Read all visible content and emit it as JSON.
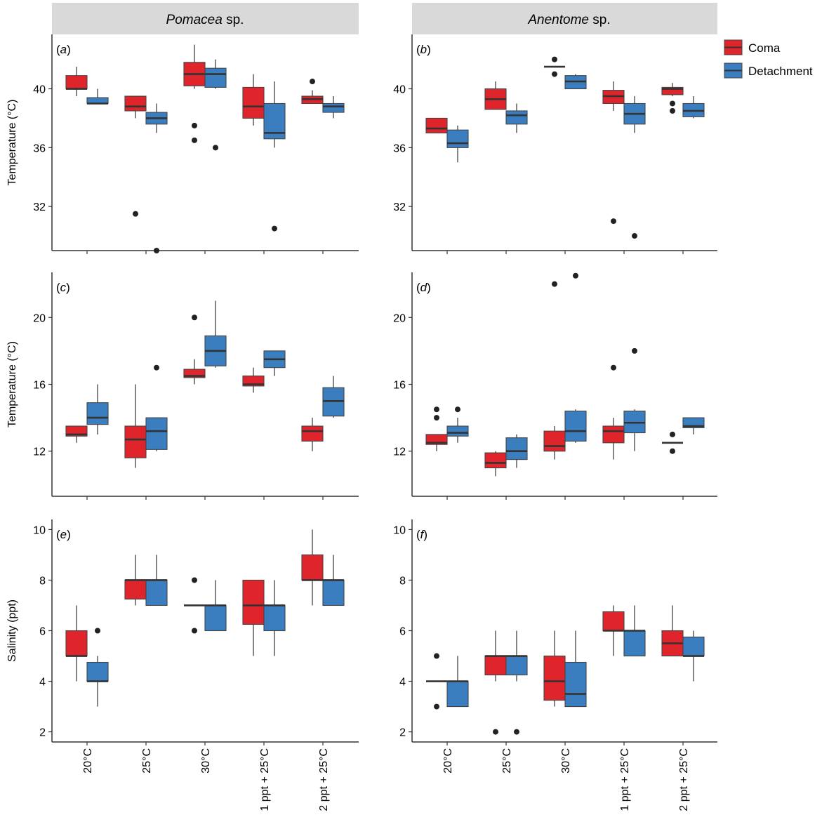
{
  "figure": {
    "columns": [
      {
        "italic": "Pomacea",
        "rest": " sp."
      },
      {
        "italic": "Anentome",
        "rest": " sp."
      }
    ],
    "legend": [
      {
        "label": "Coma",
        "color": "#e0242b"
      },
      {
        "label": "Detachment",
        "color": "#3a7ebf"
      }
    ],
    "x_categories": [
      "20°C",
      "25°C",
      "30°C",
      "1 ppt + 25°C",
      "2 ppt + 25°C"
    ]
  },
  "chart_data": [
    {
      "type": "box",
      "panel_label": "a",
      "ylabel": "Temperature (°C)",
      "ylim": [
        29,
        43.7
      ],
      "yticks": [
        32,
        36,
        40
      ],
      "categories": [
        "20°C",
        "25°C",
        "30°C",
        "1 ppt + 25°C",
        "2 ppt + 25°C"
      ],
      "series": [
        {
          "name": "Coma",
          "boxes": [
            {
              "lo": 39.5,
              "q1": 40.0,
              "med": 40.0,
              "q3": 40.9,
              "hi": 41.5,
              "out": []
            },
            {
              "lo": 38.0,
              "q1": 38.5,
              "med": 38.8,
              "q3": 39.5,
              "hi": 39.5,
              "out": [
                31.5
              ]
            },
            {
              "lo": 40.0,
              "q1": 40.2,
              "med": 41.0,
              "q3": 41.8,
              "hi": 43.0,
              "out": [
                37.5,
                36.5
              ]
            },
            {
              "lo": 37.5,
              "q1": 38.0,
              "med": 38.8,
              "q3": 40.1,
              "hi": 41.0,
              "out": []
            },
            {
              "lo": 39.0,
              "q1": 39.0,
              "med": 39.3,
              "q3": 39.5,
              "hi": 39.9,
              "out": [
                40.5
              ]
            }
          ]
        },
        {
          "name": "Detachment",
          "boxes": [
            {
              "lo": 39.0,
              "q1": 39.0,
              "med": 39.0,
              "q3": 39.4,
              "hi": 40.0,
              "out": []
            },
            {
              "lo": 37.0,
              "q1": 37.6,
              "med": 38.0,
              "q3": 38.4,
              "hi": 39.0,
              "out": [
                29.0
              ]
            },
            {
              "lo": 40.0,
              "q1": 40.1,
              "med": 41.0,
              "q3": 41.4,
              "hi": 42.0,
              "out": [
                36.0
              ]
            },
            {
              "lo": 36.0,
              "q1": 36.6,
              "med": 37.0,
              "q3": 39.0,
              "hi": 40.5,
              "out": [
                30.5
              ]
            },
            {
              "lo": 38.0,
              "q1": 38.4,
              "med": 38.8,
              "q3": 39.0,
              "hi": 39.5,
              "out": []
            }
          ]
        }
      ]
    },
    {
      "type": "box",
      "panel_label": "b",
      "ylabel": "",
      "ylim": [
        29,
        43.7
      ],
      "yticks": [
        32,
        36,
        40
      ],
      "categories": [
        "20°C",
        "25°C",
        "30°C",
        "1 ppt + 25°C",
        "2 ppt + 25°C"
      ],
      "series": [
        {
          "name": "Coma",
          "boxes": [
            {
              "lo": 37.0,
              "q1": 37.0,
              "med": 37.3,
              "q3": 38.0,
              "hi": 38.0,
              "out": []
            },
            {
              "lo": 38.6,
              "q1": 38.6,
              "med": 39.3,
              "q3": 40.0,
              "hi": 40.5,
              "out": []
            },
            {
              "lo": 41.5,
              "q1": 41.5,
              "med": 41.5,
              "q3": 41.5,
              "hi": 41.5,
              "out": [
                42.0,
                41.0
              ]
            },
            {
              "lo": 38.5,
              "q1": 39.0,
              "med": 39.5,
              "q3": 39.9,
              "hi": 40.5,
              "out": [
                31.0
              ]
            },
            {
              "lo": 39.5,
              "q1": 39.6,
              "med": 40.0,
              "q3": 40.1,
              "hi": 40.4,
              "out": [
                39.0,
                38.5
              ]
            }
          ]
        },
        {
          "name": "Detachment",
          "boxes": [
            {
              "lo": 35.0,
              "q1": 36.0,
              "med": 36.3,
              "q3": 37.2,
              "hi": 37.5,
              "out": []
            },
            {
              "lo": 37.0,
              "q1": 37.6,
              "med": 38.2,
              "q3": 38.5,
              "hi": 39.0,
              "out": []
            },
            {
              "lo": 40.0,
              "q1": 40.0,
              "med": 40.5,
              "q3": 40.9,
              "hi": 41.0,
              "out": []
            },
            {
              "lo": 37.0,
              "q1": 37.6,
              "med": 38.3,
              "q3": 39.0,
              "hi": 39.5,
              "out": [
                30.0
              ]
            },
            {
              "lo": 38.0,
              "q1": 38.1,
              "med": 38.5,
              "q3": 39.0,
              "hi": 39.5,
              "out": []
            }
          ]
        }
      ]
    },
    {
      "type": "box",
      "panel_label": "c",
      "ylabel": "Temperature (°C)",
      "ylim": [
        9.3,
        22.7
      ],
      "yticks": [
        12,
        16,
        20
      ],
      "categories": [
        "20°C",
        "25°C",
        "30°C",
        "1 ppt + 25°C",
        "2 ppt + 25°C"
      ],
      "series": [
        {
          "name": "Coma",
          "boxes": [
            {
              "lo": 12.5,
              "q1": 12.9,
              "med": 13.0,
              "q3": 13.5,
              "hi": 13.5,
              "out": []
            },
            {
              "lo": 11.0,
              "q1": 11.6,
              "med": 12.7,
              "q3": 13.5,
              "hi": 16.0,
              "out": []
            },
            {
              "lo": 16.0,
              "q1": 16.4,
              "med": 16.5,
              "q3": 16.9,
              "hi": 17.5,
              "out": [
                20.0
              ]
            },
            {
              "lo": 15.5,
              "q1": 15.9,
              "med": 16.0,
              "q3": 16.5,
              "hi": 17.0,
              "out": []
            },
            {
              "lo": 12.0,
              "q1": 12.6,
              "med": 13.2,
              "q3": 13.5,
              "hi": 14.0,
              "out": []
            }
          ]
        },
        {
          "name": "Detachment",
          "boxes": [
            {
              "lo": 13.0,
              "q1": 13.6,
              "med": 14.0,
              "q3": 14.9,
              "hi": 16.0,
              "out": []
            },
            {
              "lo": 12.0,
              "q1": 12.1,
              "med": 13.2,
              "q3": 14.0,
              "hi": 14.0,
              "out": [
                17.0
              ]
            },
            {
              "lo": 17.0,
              "q1": 17.1,
              "med": 18.0,
              "q3": 18.9,
              "hi": 21.0,
              "out": []
            },
            {
              "lo": 16.5,
              "q1": 17.0,
              "med": 17.5,
              "q3": 18.0,
              "hi": 18.0,
              "out": []
            },
            {
              "lo": 14.0,
              "q1": 14.1,
              "med": 15.0,
              "q3": 15.8,
              "hi": 16.5,
              "out": []
            }
          ]
        }
      ]
    },
    {
      "type": "box",
      "panel_label": "d",
      "ylabel": "",
      "ylim": [
        9.3,
        22.7
      ],
      "yticks": [
        12,
        16,
        20
      ],
      "categories": [
        "20°C",
        "25°C",
        "30°C",
        "1 ppt + 25°C",
        "2 ppt + 25°C"
      ],
      "series": [
        {
          "name": "Coma",
          "boxes": [
            {
              "lo": 12.0,
              "q1": 12.4,
              "med": 12.5,
              "q3": 13.0,
              "hi": 13.0,
              "out": [
                14.5,
                14.0
              ]
            },
            {
              "lo": 10.5,
              "q1": 11.0,
              "med": 11.3,
              "q3": 11.9,
              "hi": 12.0,
              "out": []
            },
            {
              "lo": 11.5,
              "q1": 12.0,
              "med": 12.3,
              "q3": 13.2,
              "hi": 13.5,
              "out": [
                22.0
              ]
            },
            {
              "lo": 11.5,
              "q1": 12.5,
              "med": 13.2,
              "q3": 13.5,
              "hi": 14.0,
              "out": [
                17.0
              ]
            },
            {
              "lo": 12.5,
              "q1": 12.5,
              "med": 12.5,
              "q3": 12.5,
              "hi": 12.5,
              "out": [
                13.0,
                12.0
              ]
            }
          ]
        },
        {
          "name": "Detachment",
          "boxes": [
            {
              "lo": 12.5,
              "q1": 12.9,
              "med": 13.1,
              "q3": 13.5,
              "hi": 14.0,
              "out": [
                14.5
              ]
            },
            {
              "lo": 11.0,
              "q1": 11.5,
              "med": 12.0,
              "q3": 12.8,
              "hi": 13.0,
              "out": []
            },
            {
              "lo": 12.5,
              "q1": 12.6,
              "med": 13.2,
              "q3": 14.4,
              "hi": 14.5,
              "out": [
                22.5
              ]
            },
            {
              "lo": 12.0,
              "q1": 13.1,
              "med": 13.7,
              "q3": 14.4,
              "hi": 14.5,
              "out": [
                18.0
              ]
            },
            {
              "lo": 13.0,
              "q1": 13.4,
              "med": 13.5,
              "q3": 14.0,
              "hi": 14.0,
              "out": []
            }
          ]
        }
      ]
    },
    {
      "type": "box",
      "panel_label": "e",
      "ylabel": "Salinity (ppt)",
      "ylim": [
        1.6,
        10.4
      ],
      "yticks": [
        2,
        4,
        6,
        8,
        10
      ],
      "categories": [
        "20°C",
        "25°C",
        "30°C",
        "1 ppt + 25°C",
        "2 ppt + 25°C"
      ],
      "series": [
        {
          "name": "Coma",
          "boxes": [
            {
              "lo": 4.0,
              "q1": 5.0,
              "med": 5.0,
              "q3": 6.0,
              "hi": 7.0,
              "out": []
            },
            {
              "lo": 7.0,
              "q1": 7.25,
              "med": 8.0,
              "q3": 8.0,
              "hi": 9.0,
              "out": []
            },
            {
              "lo": 7.0,
              "q1": 7.0,
              "med": 7.0,
              "q3": 7.0,
              "hi": 7.0,
              "out": [
                8.0,
                6.0
              ]
            },
            {
              "lo": 5.0,
              "q1": 6.25,
              "med": 7.0,
              "q3": 8.0,
              "hi": 8.0,
              "out": []
            },
            {
              "lo": 7.0,
              "q1": 8.0,
              "med": 8.0,
              "q3": 9.0,
              "hi": 10.0,
              "out": []
            }
          ]
        },
        {
          "name": "Detachment",
          "boxes": [
            {
              "lo": 3.0,
              "q1": 4.0,
              "med": 4.0,
              "q3": 4.75,
              "hi": 5.0,
              "out": [
                6.0
              ]
            },
            {
              "lo": 7.0,
              "q1": 7.0,
              "med": 8.0,
              "q3": 8.0,
              "hi": 9.0,
              "out": []
            },
            {
              "lo": 6.0,
              "q1": 6.0,
              "med": 7.0,
              "q3": 7.0,
              "hi": 8.0,
              "out": []
            },
            {
              "lo": 5.0,
              "q1": 6.0,
              "med": 7.0,
              "q3": 7.0,
              "hi": 8.0,
              "out": []
            },
            {
              "lo": 7.0,
              "q1": 7.0,
              "med": 8.0,
              "q3": 8.0,
              "hi": 9.0,
              "out": []
            }
          ]
        }
      ]
    },
    {
      "type": "box",
      "panel_label": "f",
      "ylabel": "",
      "ylim": [
        1.6,
        10.4
      ],
      "yticks": [
        2,
        4,
        6,
        8,
        10
      ],
      "categories": [
        "20°C",
        "25°C",
        "30°C",
        "1 ppt + 25°C",
        "2 ppt + 25°C"
      ],
      "series": [
        {
          "name": "Coma",
          "boxes": [
            {
              "lo": 4.0,
              "q1": 4.0,
              "med": 4.0,
              "q3": 4.0,
              "hi": 4.0,
              "out": [
                5.0,
                3.0
              ]
            },
            {
              "lo": 4.0,
              "q1": 4.25,
              "med": 5.0,
              "q3": 5.0,
              "hi": 6.0,
              "out": [
                2.0
              ]
            },
            {
              "lo": 3.0,
              "q1": 3.25,
              "med": 4.0,
              "q3": 5.0,
              "hi": 6.0,
              "out": []
            },
            {
              "lo": 5.0,
              "q1": 6.0,
              "med": 6.0,
              "q3": 6.75,
              "hi": 7.0,
              "out": []
            },
            {
              "lo": 5.0,
              "q1": 5.0,
              "med": 5.5,
              "q3": 6.0,
              "hi": 7.0,
              "out": []
            }
          ]
        },
        {
          "name": "Detachment",
          "boxes": [
            {
              "lo": 3.0,
              "q1": 3.0,
              "med": 4.0,
              "q3": 4.0,
              "hi": 5.0,
              "out": []
            },
            {
              "lo": 4.0,
              "q1": 4.25,
              "med": 5.0,
              "q3": 5.0,
              "hi": 6.0,
              "out": [
                2.0
              ]
            },
            {
              "lo": 3.0,
              "q1": 3.0,
              "med": 3.5,
              "q3": 4.75,
              "hi": 6.0,
              "out": []
            },
            {
              "lo": 5.0,
              "q1": 5.0,
              "med": 6.0,
              "q3": 6.0,
              "hi": 7.0,
              "out": []
            },
            {
              "lo": 4.0,
              "q1": 5.0,
              "med": 5.0,
              "q3": 5.75,
              "hi": 6.0,
              "out": []
            }
          ]
        }
      ]
    }
  ]
}
